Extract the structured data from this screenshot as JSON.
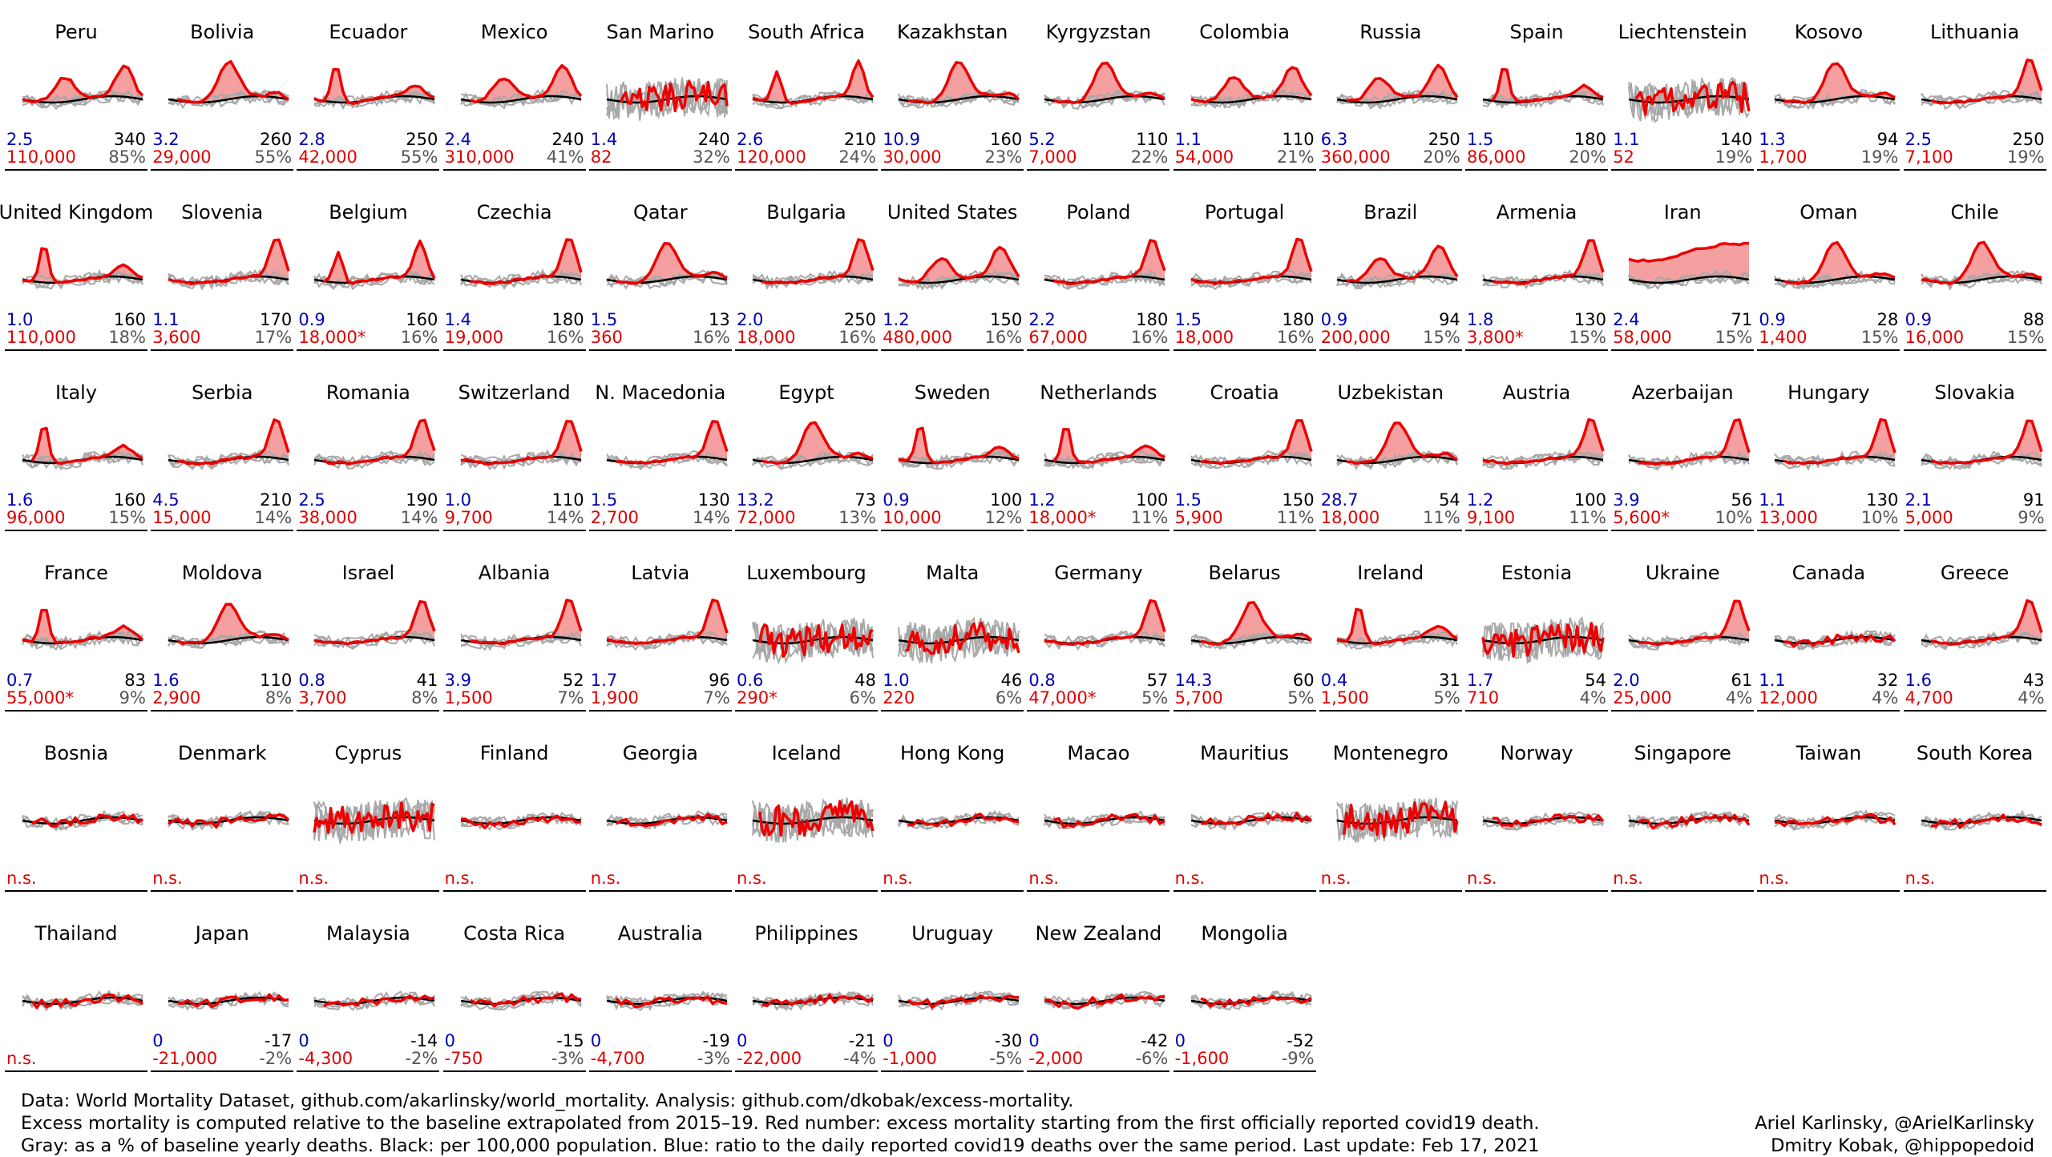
{
  "chart_data": {
    "type": "line",
    "colors": {
      "current": "#ee0000",
      "baseline": "#000000",
      "past_years": "#a8a8a8",
      "fill": "#f4a0a0",
      "ratio_text": "#0000b4",
      "early": "#b000c8"
    },
    "countries": [
      {
        "name": "Peru",
        "ratio": "2.5",
        "per100k": "340",
        "excess": "110,000",
        "pct": "85%",
        "shape": "wave",
        "start": 0.0
      },
      {
        "name": "Bolivia",
        "ratio": "3.2",
        "per100k": "260",
        "excess": "29,000",
        "pct": "55%",
        "shape": "mid",
        "start": 0.05
      },
      {
        "name": "Ecuador",
        "ratio": "2.8",
        "per100k": "250",
        "excess": "42,000",
        "pct": "55%",
        "shape": "early",
        "start": 0.0
      },
      {
        "name": "Mexico",
        "ratio": "2.4",
        "per100k": "240",
        "excess": "310,000",
        "pct": "41%",
        "shape": "wave",
        "start": 0.05
      },
      {
        "name": "San Marino",
        "ratio": "1.4",
        "per100k": "240",
        "excess": "82",
        "pct": "32%",
        "shape": "noisy",
        "start": 0.1
      },
      {
        "name": "South Africa",
        "ratio": "2.6",
        "per100k": "210",
        "excess": "120,000",
        "pct": "24%",
        "shape": "late2",
        "start": 0.0
      },
      {
        "name": "Kazakhstan",
        "ratio": "10.9",
        "per100k": "160",
        "excess": "30,000",
        "pct": "23%",
        "shape": "mid",
        "start": 0.05
      },
      {
        "name": "Kyrgyzstan",
        "ratio": "5.2",
        "per100k": "110",
        "excess": "7,000",
        "pct": "22%",
        "shape": "mid",
        "start": 0.05
      },
      {
        "name": "Colombia",
        "ratio": "1.1",
        "per100k": "110",
        "excess": "54,000",
        "pct": "21%",
        "shape": "wave",
        "start": 0.0
      },
      {
        "name": "Russia",
        "ratio": "6.3",
        "per100k": "250",
        "excess": "360,000",
        "pct": "20%",
        "shape": "wave",
        "start": 0.05
      },
      {
        "name": "Spain",
        "ratio": "1.5",
        "per100k": "180",
        "excess": "86,000",
        "pct": "20%",
        "shape": "early",
        "start": 0.05
      },
      {
        "name": "Liechtenstein",
        "ratio": "1.1",
        "per100k": "140",
        "excess": "52",
        "pct": "19%",
        "shape": "noisy",
        "start": 0.05
      },
      {
        "name": "Kosovo",
        "ratio": "1.3",
        "per100k": "94",
        "excess": "1,700",
        "pct": "19%",
        "shape": "mid",
        "start": 0.05
      },
      {
        "name": "Lithuania",
        "ratio": "2.5",
        "per100k": "250",
        "excess": "7,100",
        "pct": "19%",
        "shape": "late",
        "start": 0.05
      },
      {
        "name": "United Kingdom",
        "ratio": "1.0",
        "per100k": "160",
        "excess": "110,000",
        "pct": "18%",
        "shape": "early",
        "start": 0.0
      },
      {
        "name": "Slovenia",
        "ratio": "1.1",
        "per100k": "170",
        "excess": "3,600",
        "pct": "17%",
        "shape": "late",
        "start": 0.0
      },
      {
        "name": "Belgium",
        "ratio": "0.9",
        "per100k": "160",
        "excess": "18,000*",
        "pct": "16%",
        "shape": "late2",
        "start": 0.05
      },
      {
        "name": "Czechia",
        "ratio": "1.4",
        "per100k": "180",
        "excess": "19,000",
        "pct": "16%",
        "shape": "late",
        "start": 0.05
      },
      {
        "name": "Qatar",
        "ratio": "1.5",
        "per100k": "13",
        "excess": "360",
        "pct": "16%",
        "shape": "mid",
        "start": 0.05
      },
      {
        "name": "Bulgaria",
        "ratio": "2.0",
        "per100k": "250",
        "excess": "18,000",
        "pct": "16%",
        "shape": "late",
        "start": 0.05
      },
      {
        "name": "United States",
        "ratio": "1.2",
        "per100k": "150",
        "excess": "480,000",
        "pct": "16%",
        "shape": "wave",
        "start": 0.0
      },
      {
        "name": "Poland",
        "ratio": "2.2",
        "per100k": "180",
        "excess": "67,000",
        "pct": "16%",
        "shape": "late",
        "start": 0.05
      },
      {
        "name": "Portugal",
        "ratio": "1.5",
        "per100k": "180",
        "excess": "18,000",
        "pct": "16%",
        "shape": "late",
        "start": 0.0
      },
      {
        "name": "Brazil",
        "ratio": "0.9",
        "per100k": "94",
        "excess": "200,000",
        "pct": "15%",
        "shape": "wave",
        "start": 0.05
      },
      {
        "name": "Armenia",
        "ratio": "1.8",
        "per100k": "130",
        "excess": "3,800*",
        "pct": "15%",
        "shape": "late",
        "start": 0.05
      },
      {
        "name": "Iran",
        "ratio": "2.4",
        "per100k": "71",
        "excess": "58,000",
        "pct": "15%",
        "shape": "flatrise",
        "start": 0.0
      },
      {
        "name": "Oman",
        "ratio": "0.9",
        "per100k": "28",
        "excess": "1,400",
        "pct": "15%",
        "shape": "mid",
        "start": 0.05
      },
      {
        "name": "Chile",
        "ratio": "0.9",
        "per100k": "88",
        "excess": "16,000",
        "pct": "15%",
        "shape": "mid",
        "start": 0.0
      },
      {
        "name": "Italy",
        "ratio": "1.6",
        "per100k": "160",
        "excess": "96,000",
        "pct": "15%",
        "shape": "early",
        "start": 0.05
      },
      {
        "name": "Serbia",
        "ratio": "4.5",
        "per100k": "210",
        "excess": "15,000",
        "pct": "14%",
        "shape": "late",
        "start": 0.05
      },
      {
        "name": "Romania",
        "ratio": "2.5",
        "per100k": "190",
        "excess": "38,000",
        "pct": "14%",
        "shape": "late",
        "start": 0.05
      },
      {
        "name": "Switzerland",
        "ratio": "1.0",
        "per100k": "110",
        "excess": "9,700",
        "pct": "14%",
        "shape": "late",
        "start": 0.0
      },
      {
        "name": "N. Macedonia",
        "ratio": "1.5",
        "per100k": "130",
        "excess": "2,700",
        "pct": "14%",
        "shape": "late",
        "start": 0.05
      },
      {
        "name": "Egypt",
        "ratio": "13.2",
        "per100k": "73",
        "excess": "72,000",
        "pct": "13%",
        "shape": "mid",
        "start": 0.05
      },
      {
        "name": "Sweden",
        "ratio": "0.9",
        "per100k": "100",
        "excess": "10,000",
        "pct": "12%",
        "shape": "early",
        "start": 0.0
      },
      {
        "name": "Netherlands",
        "ratio": "1.2",
        "per100k": "100",
        "excess": "18,000*",
        "pct": "11%",
        "shape": "early",
        "start": 0.05
      },
      {
        "name": "Croatia",
        "ratio": "1.5",
        "per100k": "150",
        "excess": "5,900",
        "pct": "11%",
        "shape": "late",
        "start": 0.05
      },
      {
        "name": "Uzbekistan",
        "ratio": "28.7",
        "per100k": "54",
        "excess": "18,000",
        "pct": "11%",
        "shape": "mid",
        "start": 0.05
      },
      {
        "name": "Austria",
        "ratio": "1.2",
        "per100k": "100",
        "excess": "9,100",
        "pct": "11%",
        "shape": "late",
        "start": 0.0
      },
      {
        "name": "Azerbaijan",
        "ratio": "3.9",
        "per100k": "56",
        "excess": "5,600*",
        "pct": "10%",
        "shape": "late",
        "start": 0.05
      },
      {
        "name": "Hungary",
        "ratio": "1.1",
        "per100k": "130",
        "excess": "13,000",
        "pct": "10%",
        "shape": "late",
        "start": 0.05
      },
      {
        "name": "Slovakia",
        "ratio": "2.1",
        "per100k": "91",
        "excess": "5,000",
        "pct": "9%",
        "shape": "late",
        "start": 0.05
      },
      {
        "name": "France",
        "ratio": "0.7",
        "per100k": "83",
        "excess": "55,000*",
        "pct": "9%",
        "shape": "early",
        "start": 0.0
      },
      {
        "name": "Moldova",
        "ratio": "1.6",
        "per100k": "110",
        "excess": "2,900",
        "pct": "8%",
        "shape": "mid",
        "start": 0.05
      },
      {
        "name": "Israel",
        "ratio": "0.8",
        "per100k": "41",
        "excess": "3,700",
        "pct": "8%",
        "shape": "late",
        "start": 0.0
      },
      {
        "name": "Albania",
        "ratio": "3.9",
        "per100k": "52",
        "excess": "1,500",
        "pct": "7%",
        "shape": "late",
        "start": 0.05
      },
      {
        "name": "Latvia",
        "ratio": "1.7",
        "per100k": "96",
        "excess": "1,900",
        "pct": "7%",
        "shape": "late",
        "start": 0.0
      },
      {
        "name": "Luxembourg",
        "ratio": "0.6",
        "per100k": "48",
        "excess": "290*",
        "pct": "6%",
        "shape": "noisy",
        "start": 0.05
      },
      {
        "name": "Malta",
        "ratio": "1.0",
        "per100k": "46",
        "excess": "220",
        "pct": "6%",
        "shape": "noisy",
        "start": 0.05
      },
      {
        "name": "Germany",
        "ratio": "0.8",
        "per100k": "57",
        "excess": "47,000*",
        "pct": "5%",
        "shape": "late",
        "start": 0.0
      },
      {
        "name": "Belarus",
        "ratio": "14.3",
        "per100k": "60",
        "excess": "5,700",
        "pct": "5%",
        "shape": "mid",
        "start": 0.05
      },
      {
        "name": "Ireland",
        "ratio": "0.4",
        "per100k": "31",
        "excess": "1,500",
        "pct": "5%",
        "shape": "early",
        "start": 0.0
      },
      {
        "name": "Estonia",
        "ratio": "1.7",
        "per100k": "54",
        "excess": "710",
        "pct": "4%",
        "shape": "noisy",
        "start": 0.0
      },
      {
        "name": "Ukraine",
        "ratio": "2.0",
        "per100k": "61",
        "excess": "25,000",
        "pct": "4%",
        "shape": "late",
        "start": 0.05
      },
      {
        "name": "Canada",
        "ratio": "1.1",
        "per100k": "32",
        "excess": "12,000",
        "pct": "4%",
        "shape": "flat",
        "start": 0.05
      },
      {
        "name": "Greece",
        "ratio": "1.6",
        "per100k": "43",
        "excess": "4,700",
        "pct": "4%",
        "shape": "late",
        "start": 0.05
      },
      {
        "name": "Bosnia",
        "ratio": "",
        "per100k": "",
        "excess": "n.s.",
        "pct": "",
        "shape": "flat",
        "start": 0.05
      },
      {
        "name": "Denmark",
        "ratio": "",
        "per100k": "",
        "excess": "n.s.",
        "pct": "",
        "shape": "flat",
        "start": 0.0
      },
      {
        "name": "Cyprus",
        "ratio": "",
        "per100k": "",
        "excess": "n.s.",
        "pct": "",
        "shape": "noisy",
        "start": 0.0
      },
      {
        "name": "Finland",
        "ratio": "",
        "per100k": "",
        "excess": "n.s.",
        "pct": "",
        "shape": "flat",
        "start": 0.0
      },
      {
        "name": "Georgia",
        "ratio": "",
        "per100k": "",
        "excess": "n.s.",
        "pct": "",
        "shape": "flat",
        "start": 0.05
      },
      {
        "name": "Iceland",
        "ratio": "",
        "per100k": "",
        "excess": "n.s.",
        "pct": "",
        "shape": "noisy",
        "start": 0.05
      },
      {
        "name": "Hong Kong",
        "ratio": "",
        "per100k": "",
        "excess": "n.s.",
        "pct": "",
        "shape": "flat",
        "start": 0.05
      },
      {
        "name": "Macao",
        "ratio": "",
        "per100k": "",
        "excess": "n.s.",
        "pct": "",
        "shape": "flat",
        "start": 0.05
      },
      {
        "name": "Mauritius",
        "ratio": "",
        "per100k": "",
        "excess": "n.s.",
        "pct": "",
        "shape": "flat",
        "start": 0.05
      },
      {
        "name": "Montenegro",
        "ratio": "",
        "per100k": "",
        "excess": "n.s.",
        "pct": "",
        "shape": "noisy",
        "start": 0.05
      },
      {
        "name": "Norway",
        "ratio": "",
        "per100k": "",
        "excess": "n.s.",
        "pct": "",
        "shape": "flat",
        "start": 0.05
      },
      {
        "name": "Singapore",
        "ratio": "",
        "per100k": "",
        "excess": "n.s.",
        "pct": "",
        "shape": "flat",
        "start": 0.05
      },
      {
        "name": "Taiwan",
        "ratio": "",
        "per100k": "",
        "excess": "n.s.",
        "pct": "",
        "shape": "flat",
        "start": 0.0
      },
      {
        "name": "South Korea",
        "ratio": "",
        "per100k": "",
        "excess": "n.s.",
        "pct": "",
        "shape": "flat",
        "start": 0.05
      },
      {
        "name": "Thailand",
        "ratio": "",
        "per100k": "",
        "excess": "n.s.",
        "pct": "",
        "shape": "flat",
        "start": 0.05
      },
      {
        "name": "Japan",
        "ratio": "0",
        "per100k": "-17",
        "excess": "-21,000",
        "pct": "-2%",
        "shape": "flat",
        "start": 0.05
      },
      {
        "name": "Malaysia",
        "ratio": "0",
        "per100k": "-14",
        "excess": "-4,300",
        "pct": "-2%",
        "shape": "flat",
        "start": 0.05
      },
      {
        "name": "Costa Rica",
        "ratio": "0",
        "per100k": "-15",
        "excess": "-750",
        "pct": "-3%",
        "shape": "flat",
        "start": 0.05
      },
      {
        "name": "Australia",
        "ratio": "0",
        "per100k": "-19",
        "excess": "-4,700",
        "pct": "-3%",
        "shape": "flat",
        "start": 0.05
      },
      {
        "name": "Philippines",
        "ratio": "0",
        "per100k": "-21",
        "excess": "-22,000",
        "pct": "-4%",
        "shape": "flat",
        "start": 0.05
      },
      {
        "name": "Uruguay",
        "ratio": "0",
        "per100k": "-30",
        "excess": "-1,000",
        "pct": "-5%",
        "shape": "flat",
        "start": 0.05
      },
      {
        "name": "New Zealand",
        "ratio": "0",
        "per100k": "-42",
        "excess": "-2,000",
        "pct": "-6%",
        "shape": "flat",
        "start": 0.0
      },
      {
        "name": "Mongolia",
        "ratio": "0",
        "per100k": "-52",
        "excess": "-1,600",
        "pct": "-9%",
        "shape": "flat",
        "start": 0.05
      }
    ]
  },
  "footer": {
    "line1": "Data: World Mortality Dataset, github.com/akarlinsky/world_mortality. Analysis: github.com/dkobak/excess-mortality.",
    "line2": "Excess mortality is computed relative to the baseline extrapolated from 2015–19. Red number: excess mortality starting from the first officially reported covid19 death.",
    "line3": "Gray: as a % of baseline yearly deaths. Black: per 100,000 population. Blue: ratio to the daily reported covid19 deaths over the same period. Last update: Feb 17, 2021"
  },
  "credits": {
    "line1": "Ariel Karlinsky, @ArielKarlinsky",
    "line2": "Dmitry Kobak, @hippopedoid"
  }
}
